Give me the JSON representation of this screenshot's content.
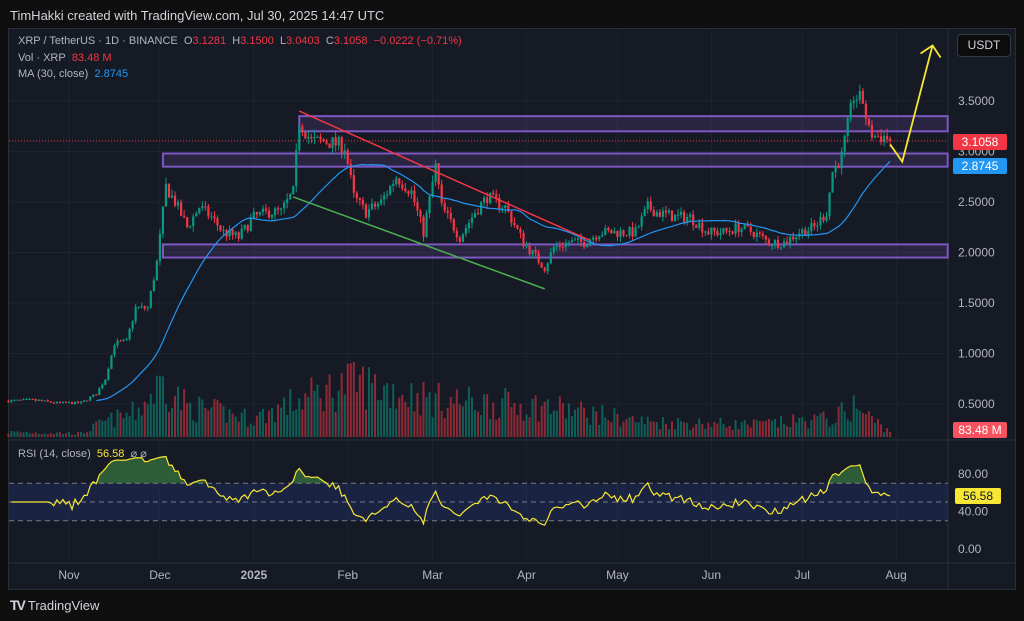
{
  "header": {
    "attribution": "TimHakki created with TradingView.com, Jul 30, 2025 14:47 UTC"
  },
  "legend": {
    "symbol": "XRP / TetherUS · 1D · BINANCE",
    "o_label": "O",
    "o": "3.1281",
    "h_label": "H",
    "h": "3.1500",
    "l_label": "L",
    "l": "3.0403",
    "c_label": "C",
    "c": "3.1058",
    "change": "−0.0222 (−0.71%)",
    "vol_label": "Vol · XRP",
    "vol": "83.48 M",
    "ma_label": "MA (30, close)",
    "ma": "2.8745",
    "rsi_label": "RSI (14, close)",
    "rsi": "56.58",
    "rsi_icons": "⌀ ⌀"
  },
  "currency_button": "USDT",
  "price_tags": {
    "last": "3.1058",
    "ma": "2.8745",
    "vol": "83.48 M",
    "rsi": "56.58"
  },
  "footer": {
    "brand": "TradingView"
  },
  "colors": {
    "up": "#089981",
    "down": "#f23645",
    "ma": "#2196f3",
    "rsi": "#f7e733",
    "zone": "#7e57c2",
    "trend_down": "#f23645",
    "trend_low": "#4caf50",
    "arrow": "#f7e733"
  },
  "chart_data": {
    "type": "candlestick",
    "price_ticks": [
      "3.5000",
      "3.0000",
      "2.5000",
      "2.0000",
      "1.5000",
      "1.0000",
      "0.5000"
    ],
    "rsi_ticks": [
      "80.00",
      "40.00",
      "0.00"
    ],
    "time_ticks": [
      {
        "label": "Nov",
        "date": "2024-11-01"
      },
      {
        "label": "Dec",
        "date": "2024-12-01"
      },
      {
        "label": "2025",
        "date": "2025-01-01",
        "bold": true
      },
      {
        "label": "Feb",
        "date": "2025-02-01"
      },
      {
        "label": "Mar",
        "date": "2025-03-01"
      },
      {
        "label": "Apr",
        "date": "2025-04-01"
      },
      {
        "label": "May",
        "date": "2025-05-01"
      },
      {
        "label": "Jun",
        "date": "2025-06-01"
      },
      {
        "label": "Jul",
        "date": "2025-07-01"
      },
      {
        "label": "Aug",
        "date": "2025-08-01"
      }
    ],
    "close_anchors": [
      [
        "2024-10-12",
        0.53
      ],
      [
        "2024-10-20",
        0.54
      ],
      [
        "2024-10-28",
        0.51
      ],
      [
        "2024-11-05",
        0.51
      ],
      [
        "2024-11-10",
        0.6
      ],
      [
        "2024-11-13",
        0.75
      ],
      [
        "2024-11-16",
        1.1
      ],
      [
        "2024-11-20",
        1.12
      ],
      [
        "2024-11-23",
        1.45
      ],
      [
        "2024-11-27",
        1.45
      ],
      [
        "2024-11-30",
        1.9
      ],
      [
        "2024-12-02",
        2.4
      ],
      [
        "2024-12-03",
        2.65
      ],
      [
        "2024-12-06",
        2.5
      ],
      [
        "2024-12-10",
        2.25
      ],
      [
        "2024-12-14",
        2.45
      ],
      [
        "2024-12-18",
        2.35
      ],
      [
        "2024-12-22",
        2.2
      ],
      [
        "2024-12-27",
        2.15
      ],
      [
        "2025-01-01",
        2.35
      ],
      [
        "2025-01-06",
        2.4
      ],
      [
        "2025-01-10",
        2.4
      ],
      [
        "2025-01-14",
        2.6
      ],
      [
        "2025-01-16",
        3.3
      ],
      [
        "2025-01-20",
        3.1
      ],
      [
        "2025-01-25",
        3.1
      ],
      [
        "2025-01-31",
        3.05
      ],
      [
        "2025-02-03",
        2.55
      ],
      [
        "2025-02-07",
        2.4
      ],
      [
        "2025-02-12",
        2.5
      ],
      [
        "2025-02-17",
        2.75
      ],
      [
        "2025-02-22",
        2.6
      ],
      [
        "2025-02-26",
        2.2
      ],
      [
        "2025-03-02",
        2.85
      ],
      [
        "2025-03-04",
        2.45
      ],
      [
        "2025-03-10",
        2.15
      ],
      [
        "2025-03-15",
        2.4
      ],
      [
        "2025-03-19",
        2.55
      ],
      [
        "2025-03-25",
        2.45
      ],
      [
        "2025-03-31",
        2.1
      ],
      [
        "2025-04-07",
        1.85
      ],
      [
        "2025-04-10",
        2.05
      ],
      [
        "2025-04-15",
        2.1
      ],
      [
        "2025-04-20",
        2.1
      ],
      [
        "2025-04-25",
        2.2
      ],
      [
        "2025-05-01",
        2.2
      ],
      [
        "2025-05-07",
        2.2
      ],
      [
        "2025-05-11",
        2.45
      ],
      [
        "2025-05-14",
        2.4
      ],
      [
        "2025-05-20",
        2.35
      ],
      [
        "2025-05-25",
        2.35
      ],
      [
        "2025-05-31",
        2.2
      ],
      [
        "2025-06-05",
        2.2
      ],
      [
        "2025-06-10",
        2.25
      ],
      [
        "2025-06-15",
        2.2
      ],
      [
        "2025-06-20",
        2.1
      ],
      [
        "2025-06-25",
        2.1
      ],
      [
        "2025-06-30",
        2.2
      ],
      [
        "2025-07-05",
        2.25
      ],
      [
        "2025-07-09",
        2.4
      ],
      [
        "2025-07-11",
        2.8
      ],
      [
        "2025-07-14",
        2.95
      ],
      [
        "2025-07-17",
        3.4
      ],
      [
        "2025-07-18",
        3.55
      ],
      [
        "2025-07-21",
        3.5
      ],
      [
        "2025-07-23",
        3.2
      ],
      [
        "2025-07-25",
        3.15
      ],
      [
        "2025-07-28",
        3.15
      ],
      [
        "2025-07-30",
        3.1058
      ]
    ],
    "volume_anchors_m": [
      [
        "2024-10-12",
        80
      ],
      [
        "2024-11-05",
        60
      ],
      [
        "2024-11-13",
        250
      ],
      [
        "2024-11-23",
        400
      ],
      [
        "2024-12-02",
        900
      ],
      [
        "2024-12-10",
        500
      ],
      [
        "2025-01-01",
        300
      ],
      [
        "2025-01-16",
        600
      ],
      [
        "2025-02-03",
        900
      ],
      [
        "2025-03-02",
        600
      ],
      [
        "2025-04-07",
        500
      ],
      [
        "2025-05-10",
        250
      ],
      [
        "2025-06-15",
        200
      ],
      [
        "2025-07-11",
        300
      ],
      [
        "2025-07-18",
        500
      ],
      [
        "2025-07-30",
        83.48
      ]
    ],
    "zones": [
      {
        "from": "2025-01-16",
        "to": "2025-08-18",
        "low": 3.2,
        "high": 3.35
      },
      {
        "from": "2024-12-02",
        "to": "2025-08-18",
        "low": 2.85,
        "high": 2.98
      },
      {
        "from": "2024-12-02",
        "to": "2025-08-18",
        "low": 1.95,
        "high": 2.08
      }
    ],
    "trendlines": [
      {
        "name": "descending-resistance",
        "points": [
          [
            "2025-01-16",
            3.4
          ],
          [
            "2025-04-22",
            2.12
          ]
        ]
      },
      {
        "name": "descending-support",
        "points": [
          [
            "2025-01-14",
            2.55
          ],
          [
            "2025-04-07",
            1.64
          ]
        ]
      }
    ],
    "projection_arrow": [
      [
        "2025-07-30",
        3.07
      ],
      [
        "2025-08-03",
        2.9
      ],
      [
        "2025-08-13",
        4.05
      ]
    ],
    "rsi_levels": {
      "upper": 70,
      "middle": 50,
      "lower": 30
    },
    "last_close": 3.1058,
    "last_ma": 2.8745,
    "last_rsi": 56.58,
    "last_volume_m": 83.48
  }
}
